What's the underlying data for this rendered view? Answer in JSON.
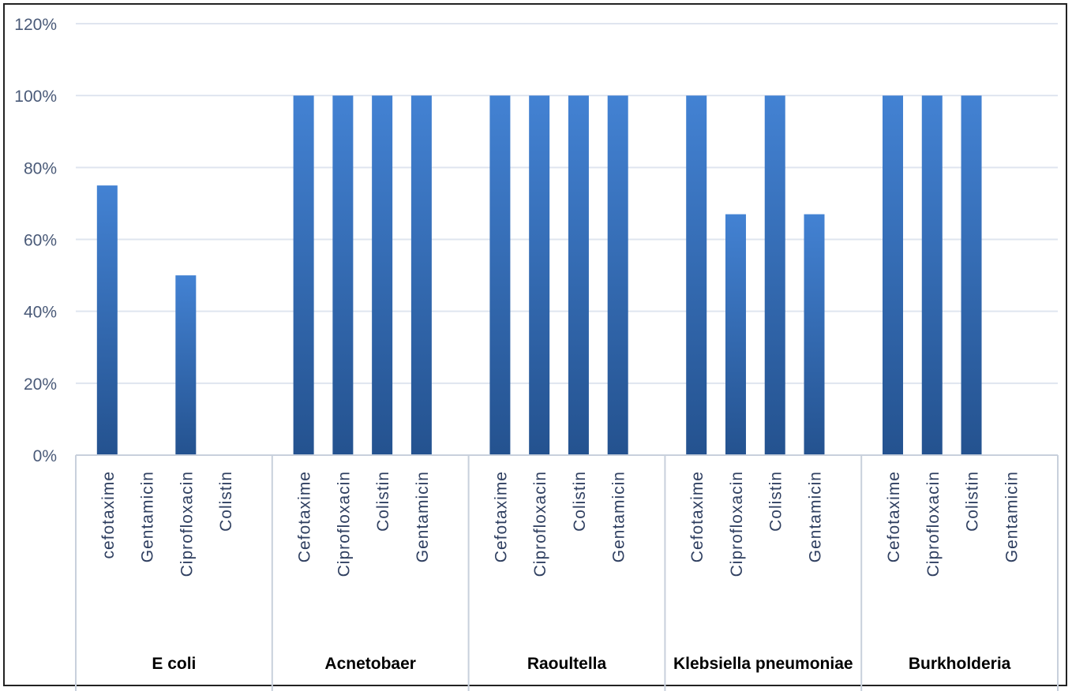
{
  "chart_data": {
    "type": "bar",
    "title": "",
    "xlabel": "",
    "ylabel": "",
    "ylim": [
      0,
      120
    ],
    "y_ticks": [
      "0%",
      "20%",
      "40%",
      "60%",
      "80%",
      "100%",
      "120%"
    ],
    "y_tick_values": [
      0,
      20,
      40,
      60,
      80,
      100,
      120
    ],
    "grid": true,
    "bar_color": "#3c76c4",
    "groups": [
      {
        "name": "E coli",
        "categories": [
          "cefotaxime",
          "Gentamicin",
          "Ciprofloxacin",
          "Colistin"
        ],
        "values": [
          75,
          0,
          50,
          0
        ]
      },
      {
        "name": "Acnetobaer",
        "categories": [
          "Cefotaxime",
          "Ciprofloxacin",
          "Colistin",
          "Gentamicin"
        ],
        "values": [
          100,
          100,
          100,
          100
        ]
      },
      {
        "name": "Raoultella",
        "categories": [
          "Cefotaxime",
          "Ciprofloxacin",
          "Colistin",
          "Gentamicin"
        ],
        "values": [
          100,
          100,
          100,
          100
        ]
      },
      {
        "name": "Klebsiella pneumoniae",
        "categories": [
          "Cefotaxime",
          "Ciprofloxacin",
          "Colistin",
          "Gentamicin"
        ],
        "values": [
          100,
          67,
          100,
          67
        ]
      },
      {
        "name": "Burkholderia",
        "categories": [
          "Cefotaxime",
          "Ciprofloxacin",
          "Colistin",
          "Gentamicin"
        ],
        "values": [
          100,
          100,
          100,
          0
        ]
      }
    ]
  }
}
